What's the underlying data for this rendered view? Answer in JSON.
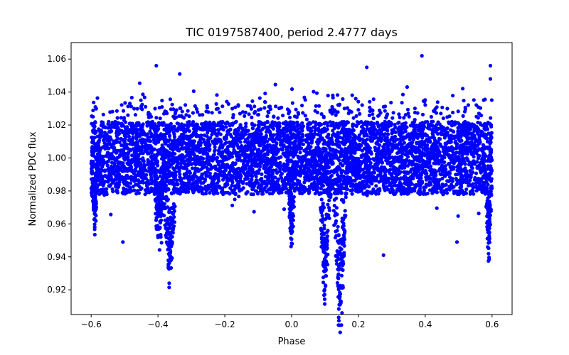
{
  "chart_data": {
    "type": "scatter",
    "title": "TIC 0197587400, period 2.4777 days",
    "xlabel": "Phase",
    "ylabel": "Normalized PDC flux",
    "xlim": [
      -0.66,
      0.66
    ],
    "ylim": [
      0.905,
      1.07
    ],
    "xticks": [
      -0.6,
      -0.4,
      -0.2,
      0.0,
      0.2,
      0.4,
      0.6
    ],
    "xtick_labels": [
      "−0.6",
      "−0.4",
      "−0.2",
      "0.0",
      "0.2",
      "0.4",
      "0.6"
    ],
    "yticks": [
      0.92,
      0.94,
      0.96,
      0.98,
      1.0,
      1.02,
      1.04,
      1.06
    ],
    "ytick_labels": [
      "0.92",
      "0.94",
      "0.96",
      "0.98",
      "1.00",
      "1.02",
      "1.04",
      "1.06"
    ],
    "grid": false,
    "legend": "none",
    "marker_color": "#0000ff",
    "phase_range": [
      -0.6,
      0.6
    ],
    "baseline_flux": 1.0,
    "baseline_band": [
      0.976,
      1.024
    ],
    "dips": [
      {
        "center": -0.395,
        "depth": 0.045,
        "width": 0.012
      },
      {
        "center": -0.365,
        "depth": 0.065,
        "width": 0.012
      },
      {
        "center": 0.0,
        "depth": 0.045,
        "width": 0.006
      },
      {
        "center": 0.1,
        "depth": 0.075,
        "width": 0.01
      },
      {
        "center": 0.145,
        "depth": 0.09,
        "width": 0.012
      },
      {
        "center": -0.59,
        "depth": 0.035,
        "width": 0.006
      },
      {
        "center": 0.59,
        "depth": 0.05,
        "width": 0.006
      }
    ],
    "outliers": [
      {
        "x": 0.39,
        "y": 1.062
      },
      {
        "x": 0.595,
        "y": 1.056
      },
      {
        "x": -0.405,
        "y": 1.056
      },
      {
        "x": 0.225,
        "y": 1.055
      },
      {
        "x": -0.335,
        "y": 1.051
      },
      {
        "x": 0.595,
        "y": 1.048
      },
      {
        "x": 0.275,
        "y": 0.941
      },
      {
        "x": -0.505,
        "y": 0.949
      },
      {
        "x": 0.495,
        "y": 0.949
      },
      {
        "x": 0.145,
        "y": 0.911
      },
      {
        "x": -0.365,
        "y": 0.933
      }
    ]
  }
}
